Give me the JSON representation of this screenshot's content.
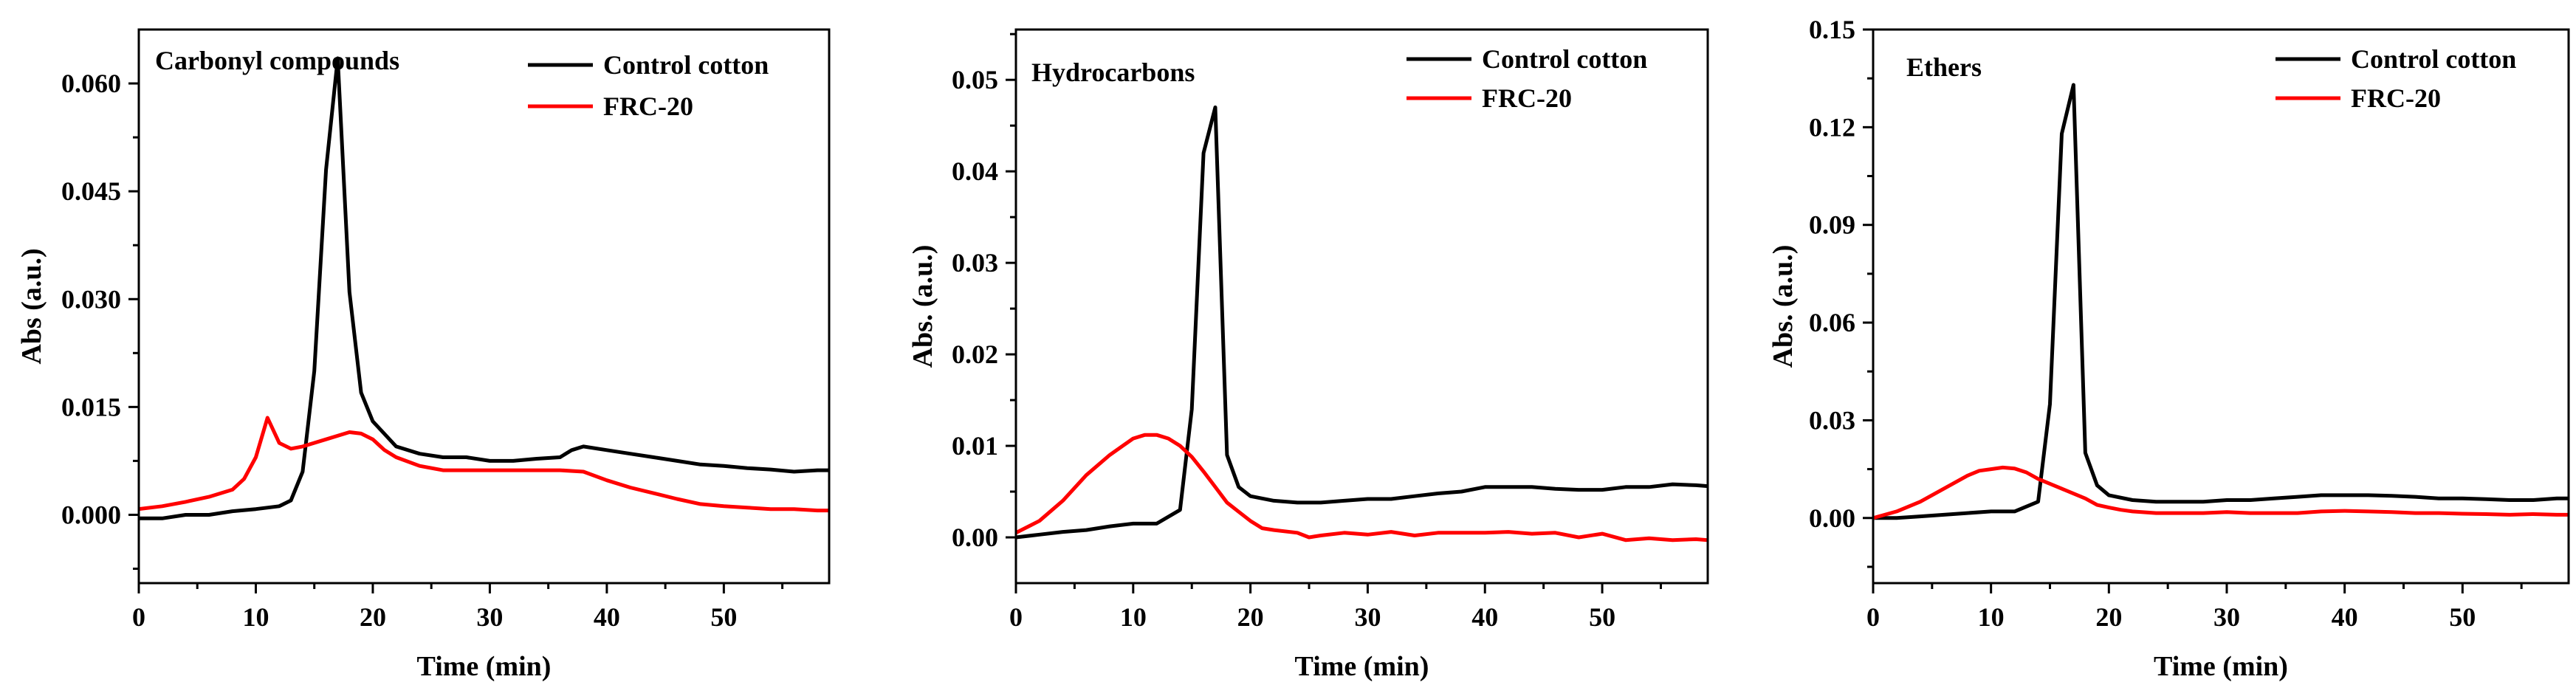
{
  "chart_data": [
    {
      "type": "line",
      "title": "Carbonyl compounds",
      "xlabel": "Time (min)",
      "ylabel": "Abs (a.u.)",
      "xlim": [
        0,
        59
      ],
      "ylim": [
        -0.0095,
        0.0675
      ],
      "xticks": [
        0,
        10,
        20,
        30,
        40,
        50
      ],
      "xtick_labels": [
        "0",
        "10",
        "20",
        "30",
        "40",
        "50"
      ],
      "yticks": [
        0.0,
        0.015,
        0.03,
        0.045,
        0.06
      ],
      "ytick_labels": [
        "0.000",
        "0.015",
        "0.030",
        "0.045",
        "0.060"
      ],
      "legend": "top-right",
      "series": [
        {
          "name": "Control cotton",
          "color": "#000000",
          "x": [
            0,
            2,
            4,
            6,
            8,
            10,
            12,
            13,
            14,
            15,
            16,
            17,
            18,
            19,
            20,
            22,
            24,
            26,
            28,
            30,
            32,
            34,
            36,
            37,
            38,
            40,
            42,
            44,
            46,
            48,
            50,
            52,
            54,
            56,
            58,
            59
          ],
          "y": [
            -0.0005,
            -0.0005,
            0.0,
            0.0,
            0.0005,
            0.0008,
            0.0012,
            0.002,
            0.006,
            0.02,
            0.048,
            0.0635,
            0.031,
            0.017,
            0.013,
            0.0095,
            0.0085,
            0.008,
            0.008,
            0.0075,
            0.0075,
            0.0078,
            0.008,
            0.009,
            0.0095,
            0.009,
            0.0085,
            0.008,
            0.0075,
            0.007,
            0.0068,
            0.0065,
            0.0063,
            0.006,
            0.0062,
            0.0062
          ]
        },
        {
          "name": "FRC-20",
          "color": "#ff0000",
          "x": [
            0,
            2,
            4,
            6,
            8,
            9,
            10,
            11,
            12,
            13,
            14,
            16,
            18,
            19,
            20,
            21,
            22,
            24,
            26,
            28,
            30,
            32,
            34,
            36,
            38,
            40,
            42,
            44,
            46,
            48,
            50,
            52,
            54,
            56,
            58,
            59
          ],
          "y": [
            0.0008,
            0.0012,
            0.0018,
            0.0025,
            0.0035,
            0.005,
            0.008,
            0.0135,
            0.01,
            0.0092,
            0.0095,
            0.0105,
            0.0115,
            0.0113,
            0.0105,
            0.009,
            0.008,
            0.0068,
            0.0062,
            0.0062,
            0.0062,
            0.0062,
            0.0062,
            0.0062,
            0.006,
            0.0048,
            0.0038,
            0.003,
            0.0022,
            0.0015,
            0.0012,
            0.001,
            0.0008,
            0.0008,
            0.0006,
            0.0006
          ]
        }
      ]
    },
    {
      "type": "line",
      "title": "Hydrocarbons",
      "xlabel": "Time (min)",
      "ylabel": "Abs. (a.u.)",
      "xlim": [
        0,
        59
      ],
      "ylim": [
        -0.005,
        0.0555
      ],
      "xticks": [
        0,
        10,
        20,
        30,
        40,
        50
      ],
      "xtick_labels": [
        "0",
        "10",
        "20",
        "30",
        "40",
        "50"
      ],
      "yticks": [
        0.0,
        0.01,
        0.02,
        0.03,
        0.04,
        0.05
      ],
      "ytick_labels": [
        "0.00",
        "0.01",
        "0.02",
        "0.03",
        "0.04",
        "0.05"
      ],
      "legend": "top-right",
      "series": [
        {
          "name": "Control cotton",
          "color": "#000000",
          "x": [
            0,
            2,
            4,
            6,
            8,
            10,
            12,
            14,
            15,
            16,
            17,
            18,
            19,
            20,
            22,
            24,
            26,
            28,
            30,
            32,
            34,
            36,
            38,
            40,
            42,
            44,
            46,
            48,
            50,
            52,
            54,
            56,
            58,
            59
          ],
          "y": [
            0.0,
            0.0003,
            0.0006,
            0.0008,
            0.0012,
            0.0015,
            0.0015,
            0.003,
            0.014,
            0.042,
            0.047,
            0.009,
            0.0055,
            0.0045,
            0.004,
            0.0038,
            0.0038,
            0.004,
            0.0042,
            0.0042,
            0.0045,
            0.0048,
            0.005,
            0.0055,
            0.0055,
            0.0055,
            0.0053,
            0.0052,
            0.0052,
            0.0055,
            0.0055,
            0.0058,
            0.0057,
            0.0056
          ]
        },
        {
          "name": "FRC-20",
          "color": "#ff0000",
          "x": [
            0,
            2,
            4,
            6,
            8,
            10,
            11,
            12,
            13,
            14,
            15,
            16,
            17,
            18,
            19,
            20,
            21,
            22,
            24,
            25,
            26,
            28,
            30,
            32,
            34,
            36,
            38,
            40,
            42,
            44,
            46,
            48,
            50,
            52,
            54,
            56,
            58,
            59
          ],
          "y": [
            0.0005,
            0.0018,
            0.004,
            0.0068,
            0.009,
            0.0108,
            0.0112,
            0.0112,
            0.0108,
            0.01,
            0.0088,
            0.0072,
            0.0055,
            0.0038,
            0.0028,
            0.0018,
            0.001,
            0.0008,
            0.0005,
            0.0,
            0.0002,
            0.0005,
            0.0003,
            0.0006,
            0.0002,
            0.0005,
            0.0005,
            0.0005,
            0.0006,
            0.0004,
            0.0005,
            0.0,
            0.0004,
            -0.0003,
            -0.0001,
            -0.0003,
            -0.0002,
            -0.0003
          ]
        }
      ]
    },
    {
      "type": "line",
      "title": "Ethers",
      "xlabel": "Time (min)",
      "ylabel": "Abs. (a.u.)",
      "xlim": [
        0,
        59
      ],
      "ylim": [
        -0.02,
        0.15
      ],
      "xticks": [
        0,
        10,
        20,
        30,
        40,
        50
      ],
      "xtick_labels": [
        "0",
        "10",
        "20",
        "30",
        "40",
        "50"
      ],
      "yticks": [
        0.0,
        0.03,
        0.06,
        0.09,
        0.12,
        0.15
      ],
      "ytick_labels": [
        "0.00",
        "0.03",
        "0.06",
        "0.09",
        "0.12",
        "0.15"
      ],
      "legend": "top-right",
      "series": [
        {
          "name": "Control cotton",
          "color": "#000000",
          "x": [
            0,
            2,
            4,
            6,
            8,
            10,
            12,
            14,
            15,
            16,
            17,
            18,
            19,
            20,
            22,
            24,
            26,
            28,
            30,
            32,
            34,
            36,
            38,
            40,
            42,
            44,
            46,
            48,
            50,
            52,
            54,
            56,
            58,
            59
          ],
          "y": [
            0.0,
            0.0,
            0.0005,
            0.001,
            0.0015,
            0.002,
            0.002,
            0.005,
            0.035,
            0.118,
            0.133,
            0.02,
            0.01,
            0.007,
            0.0055,
            0.005,
            0.005,
            0.005,
            0.0055,
            0.0055,
            0.006,
            0.0065,
            0.007,
            0.007,
            0.007,
            0.0068,
            0.0065,
            0.006,
            0.006,
            0.0058,
            0.0055,
            0.0055,
            0.006,
            0.006
          ]
        },
        {
          "name": "FRC-20",
          "color": "#ff0000",
          "x": [
            0,
            2,
            4,
            6,
            8,
            9,
            10,
            11,
            12,
            13,
            14,
            16,
            18,
            19,
            20,
            21,
            22,
            24,
            26,
            28,
            30,
            32,
            34,
            36,
            38,
            40,
            42,
            44,
            46,
            48,
            50,
            52,
            54,
            56,
            58,
            59
          ],
          "y": [
            0.0,
            0.002,
            0.005,
            0.009,
            0.013,
            0.0145,
            0.015,
            0.0155,
            0.0152,
            0.014,
            0.012,
            0.009,
            0.006,
            0.004,
            0.0032,
            0.0025,
            0.002,
            0.0015,
            0.0015,
            0.0015,
            0.0018,
            0.0015,
            0.0015,
            0.0015,
            0.002,
            0.0022,
            0.002,
            0.0018,
            0.0015,
            0.0015,
            0.0013,
            0.0012,
            0.001,
            0.0012,
            0.001,
            0.001
          ]
        }
      ]
    }
  ]
}
